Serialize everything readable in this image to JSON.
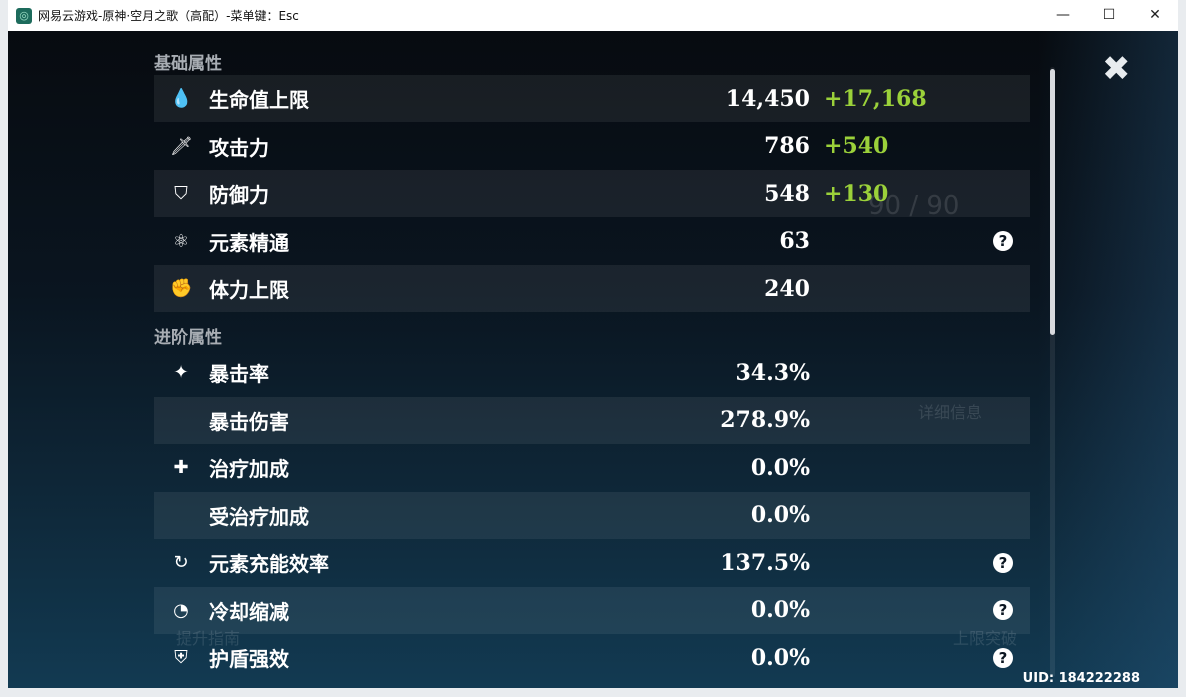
{
  "window": {
    "title": "网易云游戏-原神·空月之歌（高配）-菜单键：Esc",
    "minimize": "—",
    "maximize": "☐",
    "close": "✕"
  },
  "panel": {
    "basic_header": "基础属性",
    "basic": [
      {
        "icon": "hp-drop-icon",
        "glyph": "💧",
        "label": "生命值上限",
        "value": "14,450",
        "bonus": "+17,168"
      },
      {
        "icon": "sword-icon",
        "glyph": "🗡",
        "label": "攻击力",
        "value": "786",
        "bonus": "+540"
      },
      {
        "icon": "shield-icon",
        "glyph": "⛉",
        "label": "防御力",
        "value": "548",
        "bonus": "+130"
      },
      {
        "icon": "elemental-mastery-icon",
        "glyph": "⚛",
        "label": "元素精通",
        "value": "63",
        "help": "?"
      },
      {
        "icon": "stamina-icon",
        "glyph": "✊",
        "label": "体力上限",
        "value": "240"
      }
    ],
    "advanced_header": "进阶属性",
    "advanced": [
      {
        "icon": "crit-rate-icon",
        "glyph": "✦",
        "label": "暴击率",
        "value": "34.3%"
      },
      {
        "icon": "",
        "glyph": "",
        "label": "暴击伤害",
        "value": "278.9%"
      },
      {
        "icon": "healing-cross-icon",
        "glyph": "✚",
        "label": "治疗加成",
        "value": "0.0%"
      },
      {
        "icon": "",
        "glyph": "",
        "label": "受治疗加成",
        "value": "0.0%"
      },
      {
        "icon": "energy-recharge-icon",
        "glyph": "↻",
        "label": "元素充能效率",
        "value": "137.5%",
        "help": "?"
      },
      {
        "icon": "cooldown-icon",
        "glyph": "◔",
        "label": "冷却缩减",
        "value": "0.0%",
        "help": "?"
      },
      {
        "icon": "shield-strength-icon",
        "glyph": "⛨",
        "label": "护盾强效",
        "value": "0.0%",
        "help": "?"
      }
    ]
  },
  "close_glyph": "✖",
  "uid": "UID: 184222288",
  "background": {
    "details": "详细信息",
    "guide": "提升指南",
    "ascend": "上限突破",
    "level": "90 / 90"
  },
  "colors": {
    "bonus": "#9bd13a"
  }
}
